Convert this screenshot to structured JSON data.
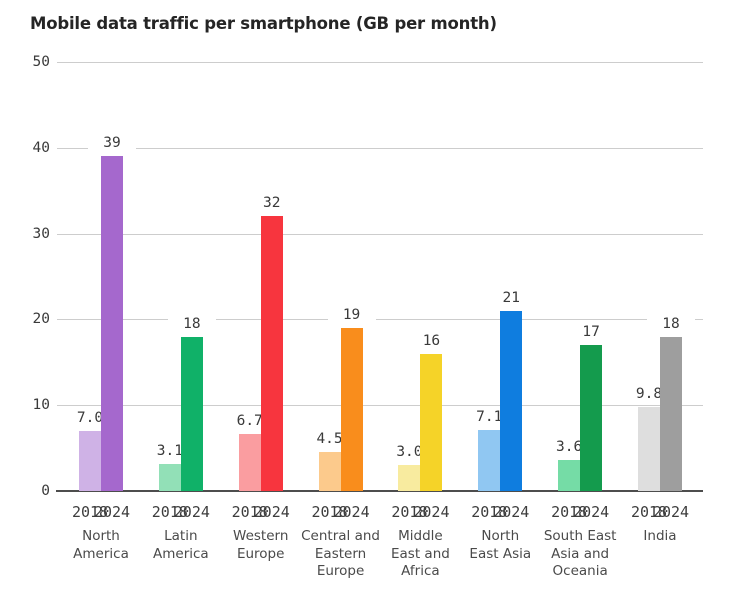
{
  "chart_data": {
    "type": "bar",
    "title": "Mobile data traffic per smartphone (GB per month)",
    "ylabel": "",
    "xlabel": "",
    "ylim": [
      0,
      50
    ],
    "yticks": [
      0,
      10,
      20,
      30,
      40,
      50
    ],
    "grid": true,
    "legend": "none",
    "series_years": [
      "2018",
      "2024"
    ],
    "groups": [
      {
        "id": "north-america",
        "region": "North America",
        "label_lines": [
          "North",
          "America"
        ],
        "values": {
          "2018": 7.0,
          "2024": 39
        },
        "value_labels": {
          "2018": "7.0",
          "2024": "39"
        },
        "colors": {
          "2018": "#cfb2e6",
          "2024": "#a568cd"
        }
      },
      {
        "id": "latin-america",
        "region": "Latin America",
        "label_lines": [
          "Latin",
          "America"
        ],
        "values": {
          "2018": 3.1,
          "2024": 18
        },
        "value_labels": {
          "2018": "3.1",
          "2024": "18"
        },
        "colors": {
          "2018": "#92e0b7",
          "2024": "#10b168"
        }
      },
      {
        "id": "western-europe",
        "region": "Western Europe",
        "label_lines": [
          "Western",
          "Europe"
        ],
        "values": {
          "2018": 6.7,
          "2024": 32
        },
        "value_labels": {
          "2018": "6.7",
          "2024": "32"
        },
        "colors": {
          "2018": "#fa9da0",
          "2024": "#f7353e"
        }
      },
      {
        "id": "central-and-eastern-europe",
        "region": "Central and Eastern Europe",
        "label_lines": [
          "Central and",
          "Eastern",
          "Europe"
        ],
        "values": {
          "2018": 4.5,
          "2024": 19
        },
        "value_labels": {
          "2018": "4.5",
          "2024": "19"
        },
        "colors": {
          "2018": "#fcca8c",
          "2024": "#f98d1c"
        }
      },
      {
        "id": "middle-east-and-africa",
        "region": "Middle East and Africa",
        "label_lines": [
          "Middle",
          "East and",
          "Africa"
        ],
        "values": {
          "2018": 3.0,
          "2024": 16
        },
        "value_labels": {
          "2018": "3.0",
          "2024": "16"
        },
        "colors": {
          "2018": "#f8eb9f",
          "2024": "#f5d328"
        }
      },
      {
        "id": "north-east-asia",
        "region": "North East Asia",
        "label_lines": [
          "North",
          "East Asia"
        ],
        "values": {
          "2018": 7.1,
          "2024": 21
        },
        "value_labels": {
          "2018": "7.1",
          "2024": "21"
        },
        "colors": {
          "2018": "#90c7f2",
          "2024": "#0f7ddf"
        }
      },
      {
        "id": "south-east-asia-and-oceania",
        "region": "South East Asia and Oceania",
        "label_lines": [
          "South East",
          "Asia and",
          "Oceania"
        ],
        "values": {
          "2018": 3.6,
          "2024": 17
        },
        "value_labels": {
          "2018": "3.6",
          "2024": "17"
        },
        "colors": {
          "2018": "#75dca6",
          "2024": "#149b4d"
        }
      },
      {
        "id": "india",
        "region": "India",
        "label_lines": [
          "India"
        ],
        "values": {
          "2018": 9.8,
          "2024": 18
        },
        "value_labels": {
          "2018": "9.8",
          "2024": "18"
        },
        "colors": {
          "2018": "#dedede",
          "2024": "#9e9e9e"
        }
      }
    ],
    "geometry_note": "grouped bars, pairs of 2018 (light) and 2024 (dark), horizontal gridlines only"
  }
}
